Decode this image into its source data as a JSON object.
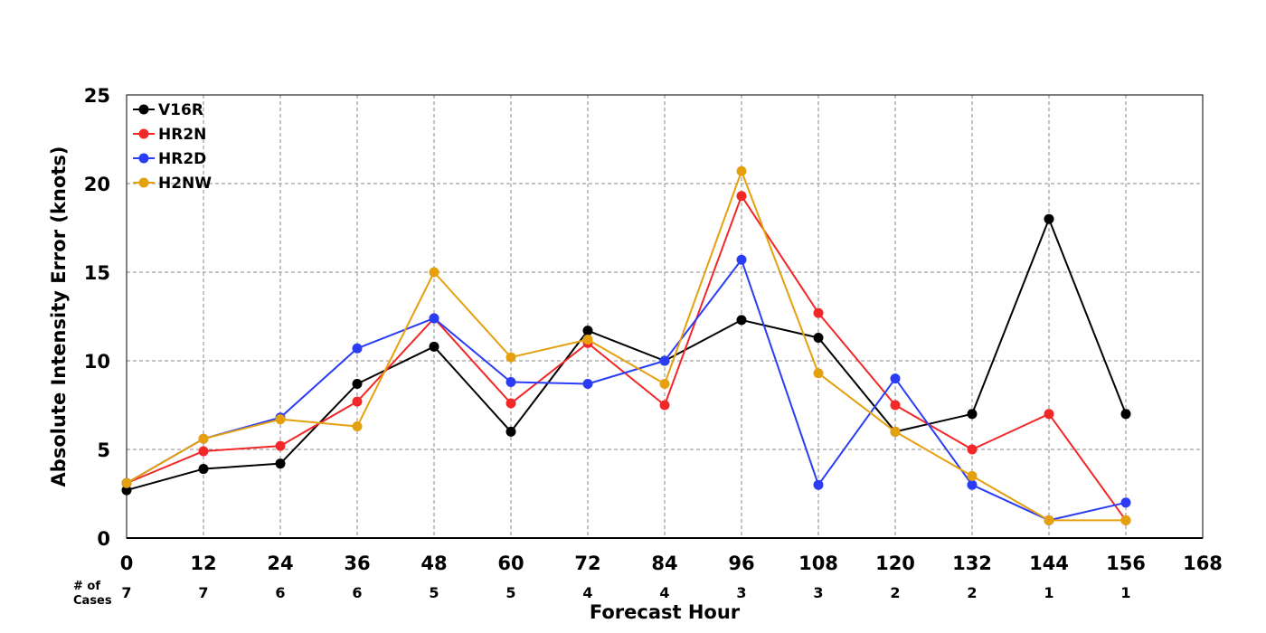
{
  "chart_data": {
    "type": "line",
    "title": "",
    "xlabel": "Forecast Hour",
    "ylabel": "Absolute Intensity Error (knots)",
    "xlim": [
      0,
      168
    ],
    "ylim": [
      0,
      25
    ],
    "x_ticks": [
      0,
      12,
      24,
      36,
      48,
      60,
      72,
      84,
      96,
      108,
      120,
      132,
      144,
      156,
      168
    ],
    "y_ticks": [
      0,
      5,
      10,
      15,
      20,
      25
    ],
    "grid": true,
    "legend_position": "top-left",
    "cases_label_line1": "# of",
    "cases_label_line2": "Cases",
    "cases": [
      {
        "x": 0,
        "count": "7"
      },
      {
        "x": 12,
        "count": "7"
      },
      {
        "x": 24,
        "count": "6"
      },
      {
        "x": 36,
        "count": "6"
      },
      {
        "x": 48,
        "count": "5"
      },
      {
        "x": 60,
        "count": "5"
      },
      {
        "x": 72,
        "count": "4"
      },
      {
        "x": 84,
        "count": "4"
      },
      {
        "x": 96,
        "count": "3"
      },
      {
        "x": 108,
        "count": "3"
      },
      {
        "x": 120,
        "count": "2"
      },
      {
        "x": 132,
        "count": "2"
      },
      {
        "x": 144,
        "count": "1"
      },
      {
        "x": 156,
        "count": "1"
      }
    ],
    "x": [
      0,
      12,
      24,
      36,
      48,
      60,
      72,
      84,
      96,
      108,
      120,
      132,
      144,
      156
    ],
    "series": [
      {
        "name": "V16R",
        "color": "#000000",
        "values": [
          2.7,
          3.9,
          4.2,
          8.7,
          10.8,
          6.0,
          11.7,
          10.0,
          12.3,
          11.3,
          6.0,
          7.0,
          18.0,
          7.0
        ]
      },
      {
        "name": "HR2N",
        "color": "#f22727",
        "values": [
          3.1,
          4.9,
          5.2,
          7.7,
          12.4,
          7.6,
          11.0,
          7.5,
          19.3,
          12.7,
          7.5,
          5.0,
          7.0,
          1.0
        ]
      },
      {
        "name": "HR2D",
        "color": "#2a3df5",
        "values": [
          3.1,
          5.6,
          6.8,
          10.7,
          12.4,
          8.8,
          8.7,
          10.0,
          15.7,
          3.0,
          9.0,
          3.0,
          1.0,
          2.0
        ]
      },
      {
        "name": "H2NW",
        "color": "#e5a00d",
        "values": [
          3.1,
          5.6,
          6.7,
          6.3,
          15.0,
          10.2,
          11.2,
          8.7,
          20.7,
          9.3,
          6.0,
          3.5,
          1.0,
          1.0
        ]
      }
    ]
  }
}
